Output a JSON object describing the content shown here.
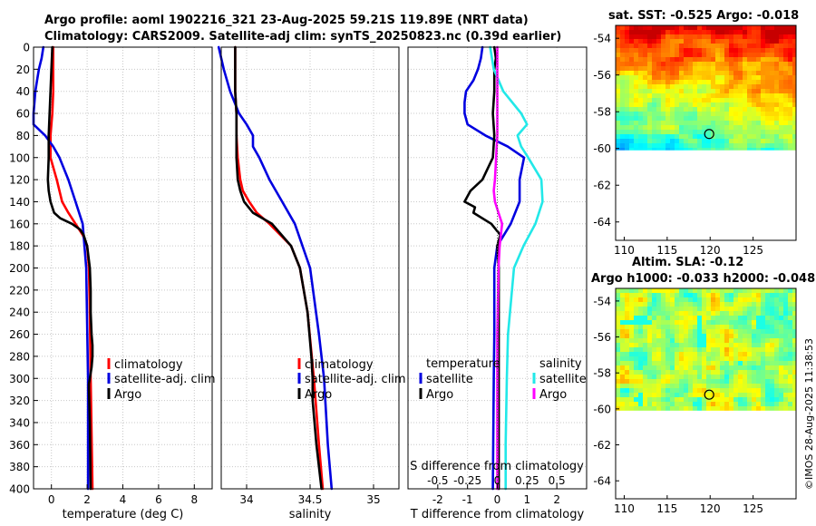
{
  "header": {
    "line1": "Argo profile: aoml 1902216_321 23-Aug-2025 59.21S 119.89E (NRT data)",
    "line2": "Climatology: CARS2009. Satellite-adj clim: synTS_20250823.nc (0.39d earlier)"
  },
  "colors": {
    "climatology": "#ff0000",
    "satellite": "#0000e0",
    "argo": "#000000",
    "salinity_satellite": "#22e8e8",
    "salinity_argo": "#ff00ff"
  },
  "chart_data": [
    {
      "type": "line",
      "id": "temperature",
      "xlabel": "temperature (deg C)",
      "ylabel": "",
      "xlim": [
        -1,
        9
      ],
      "ylim": [
        400,
        0
      ],
      "xticks": [
        "0",
        "2",
        "4",
        "6",
        "8"
      ],
      "yticks": [
        "0",
        "20",
        "40",
        "60",
        "80",
        "100",
        "120",
        "140",
        "160",
        "180",
        "200",
        "220",
        "240",
        "260",
        "280",
        "300",
        "320",
        "340",
        "360",
        "380",
        "400"
      ],
      "grid": true,
      "legend": {
        "position": "right-middle",
        "entries": [
          "climatology",
          "satellite-adj. clim",
          "Argo"
        ]
      },
      "series": [
        {
          "name": "climatology",
          "color": "#ff0000",
          "y": [
            0,
            10,
            20,
            40,
            60,
            80,
            100,
            120,
            140,
            150,
            160,
            170,
            180,
            200,
            240,
            300,
            350,
            400
          ],
          "x": [
            0.1,
            0.1,
            0.1,
            0.1,
            0.05,
            -0.05,
            -0.05,
            0.3,
            0.6,
            0.95,
            1.35,
            1.75,
            2.0,
            2.1,
            2.15,
            2.2,
            2.25,
            2.3
          ]
        },
        {
          "name": "satellite-adj. clim",
          "color": "#0000e0",
          "y": [
            0,
            10,
            20,
            30,
            40,
            50,
            60,
            70,
            80,
            90,
            100,
            120,
            140,
            160,
            200,
            300,
            400
          ],
          "x": [
            -0.45,
            -0.55,
            -0.7,
            -0.8,
            -0.9,
            -0.95,
            -1.0,
            -1.0,
            -0.35,
            0.1,
            0.45,
            0.95,
            1.35,
            1.75,
            1.95,
            2.05,
            2.05
          ]
        },
        {
          "name": "Argo",
          "color": "#000000",
          "y": [
            0,
            20,
            40,
            60,
            80,
            100,
            120,
            130,
            140,
            150,
            155,
            160,
            165,
            170,
            180,
            200,
            220,
            240,
            260,
            270,
            280,
            290,
            300,
            305,
            310,
            340,
            400
          ],
          "x": [
            0.05,
            0.0,
            -0.05,
            -0.1,
            -0.15,
            -0.15,
            -0.2,
            -0.15,
            -0.05,
            0.15,
            0.5,
            1.15,
            1.6,
            1.8,
            2.0,
            2.15,
            2.2,
            2.2,
            2.25,
            2.3,
            2.3,
            2.25,
            2.15,
            2.1,
            2.1,
            2.15,
            2.2
          ]
        }
      ]
    },
    {
      "type": "line",
      "id": "salinity",
      "xlabel": "salinity",
      "ylabel": "",
      "xlim": [
        33.8,
        35.2
      ],
      "ylim": [
        400,
        0
      ],
      "xticks": [
        "34",
        "34.5",
        "35"
      ],
      "grid": true,
      "legend": {
        "position": "right-middle",
        "entries": [
          "climatology",
          "satellite-adj. clim",
          "Argo"
        ]
      },
      "series": [
        {
          "name": "climatology",
          "color": "#ff0000",
          "y": [
            0,
            20,
            40,
            60,
            80,
            100,
            120,
            130,
            140,
            150,
            160,
            180,
            200,
            240,
            300,
            360,
            400
          ],
          "x": [
            33.91,
            33.91,
            33.91,
            33.92,
            33.92,
            33.93,
            33.95,
            33.97,
            34.02,
            34.08,
            34.18,
            34.35,
            34.42,
            34.48,
            34.53,
            34.57,
            34.6
          ]
        },
        {
          "name": "satellite-adj. clim",
          "color": "#0000e0",
          "y": [
            0,
            20,
            40,
            60,
            70,
            80,
            90,
            100,
            120,
            140,
            160,
            200,
            260,
            300,
            360,
            400
          ],
          "x": [
            33.78,
            33.82,
            33.87,
            33.94,
            34.0,
            34.05,
            34.05,
            34.1,
            34.18,
            34.28,
            34.38,
            34.5,
            34.57,
            34.61,
            34.64,
            34.67
          ]
        },
        {
          "name": "Argo",
          "color": "#000000",
          "y": [
            0,
            20,
            40,
            60,
            80,
            100,
            120,
            130,
            140,
            150,
            160,
            180,
            200,
            240,
            280,
            300,
            320,
            360,
            400
          ],
          "x": [
            33.91,
            33.91,
            33.91,
            33.92,
            33.92,
            33.92,
            33.93,
            33.95,
            33.98,
            34.05,
            34.2,
            34.35,
            34.42,
            34.48,
            34.51,
            34.52,
            34.52,
            34.55,
            34.59
          ]
        }
      ]
    },
    {
      "type": "line",
      "id": "difference",
      "xlabel": "T difference from climatology",
      "top_axis_label": "S difference from climatology",
      "xlim": [
        -3,
        3
      ],
      "ylim": [
        400,
        0
      ],
      "xticks": [
        "-2",
        "-1",
        "0",
        "1",
        "2"
      ],
      "top_xticks": [
        "-0.5",
        "-0.25",
        "0",
        "0.25",
        "0.5"
      ],
      "grid": true,
      "legend": {
        "position": "left-middle",
        "temperature_title": "temperature",
        "salinity_title": "salinity",
        "temperature_entries": [
          "satellite",
          "Argo"
        ],
        "salinity_entries": [
          "satellite",
          "Argo"
        ]
      },
      "series": [
        {
          "name": "temperature satellite",
          "color": "#0000e0",
          "y": [
            0,
            10,
            20,
            30,
            40,
            50,
            60,
            70,
            80,
            90,
            100,
            120,
            140,
            160,
            180,
            200,
            260,
            300,
            400
          ],
          "x": [
            -0.5,
            -0.55,
            -0.65,
            -0.8,
            -1.05,
            -1.1,
            -1.1,
            -1.0,
            -0.4,
            0.35,
            0.9,
            0.75,
            0.75,
            0.45,
            0.0,
            -0.1,
            -0.1,
            -0.12,
            -0.15
          ]
        },
        {
          "name": "temperature Argo",
          "color": "#000000",
          "y": [
            0,
            10,
            20,
            40,
            60,
            80,
            100,
            120,
            130,
            140,
            145,
            150,
            160,
            170,
            180,
            200,
            240,
            300,
            350,
            400
          ],
          "x": [
            -0.1,
            -0.05,
            -0.1,
            -0.1,
            -0.15,
            -0.1,
            -0.15,
            -0.5,
            -0.9,
            -1.1,
            -0.75,
            -0.8,
            -0.2,
            0.1,
            0.0,
            0.05,
            0.05,
            0.05,
            0.05,
            0.05
          ]
        },
        {
          "name": "salinity satellite",
          "color": "#22e8e8",
          "y": [
            0,
            20,
            40,
            60,
            70,
            80,
            90,
            100,
            120,
            140,
            160,
            180,
            200,
            260,
            300,
            360,
            400
          ],
          "x": [
            -0.06,
            -0.03,
            0.05,
            0.2,
            0.25,
            0.17,
            0.2,
            0.26,
            0.37,
            0.38,
            0.32,
            0.22,
            0.14,
            0.09,
            0.08,
            0.07,
            0.07
          ]
        },
        {
          "name": "salinity Argo",
          "color": "#ff00ff",
          "y": [
            0,
            20,
            40,
            60,
            80,
            100,
            120,
            130,
            140,
            150,
            160,
            180,
            200,
            260,
            300,
            360,
            400
          ],
          "x": [
            0.0,
            0.0,
            0.0,
            0.0,
            0.0,
            -0.01,
            -0.02,
            -0.03,
            -0.02,
            0.01,
            0.04,
            0.02,
            0.01,
            0.0,
            0.0,
            0.0,
            0.0
          ]
        }
      ]
    }
  ],
  "maps": {
    "sst": {
      "title": "sat. SST: -0.525 Argo: -0.018",
      "xticks": [
        "110",
        "115",
        "120",
        "125"
      ],
      "yticks": [
        "-54",
        "-56",
        "-58",
        "-60",
        "-62",
        "-64"
      ],
      "xlim": [
        109,
        130
      ],
      "ylim": [
        -65,
        -53.3
      ],
      "argo_position": {
        "lon": 119.89,
        "lat": -59.21
      }
    },
    "sla": {
      "title_line1": "Altim. SLA: -0.12",
      "title_line2": "Argo h1000: -0.033 h2000: -0.048",
      "xticks": [
        "110",
        "115",
        "120",
        "125"
      ],
      "yticks": [
        "-54",
        "-56",
        "-58",
        "-60",
        "-62",
        "-64"
      ],
      "xlim": [
        109,
        130
      ],
      "ylim": [
        -65,
        -53.3
      ],
      "argo_position": {
        "lon": 119.89,
        "lat": -59.21
      }
    }
  },
  "stamp": "©IMOS 28-Aug-2025 11:38:53"
}
